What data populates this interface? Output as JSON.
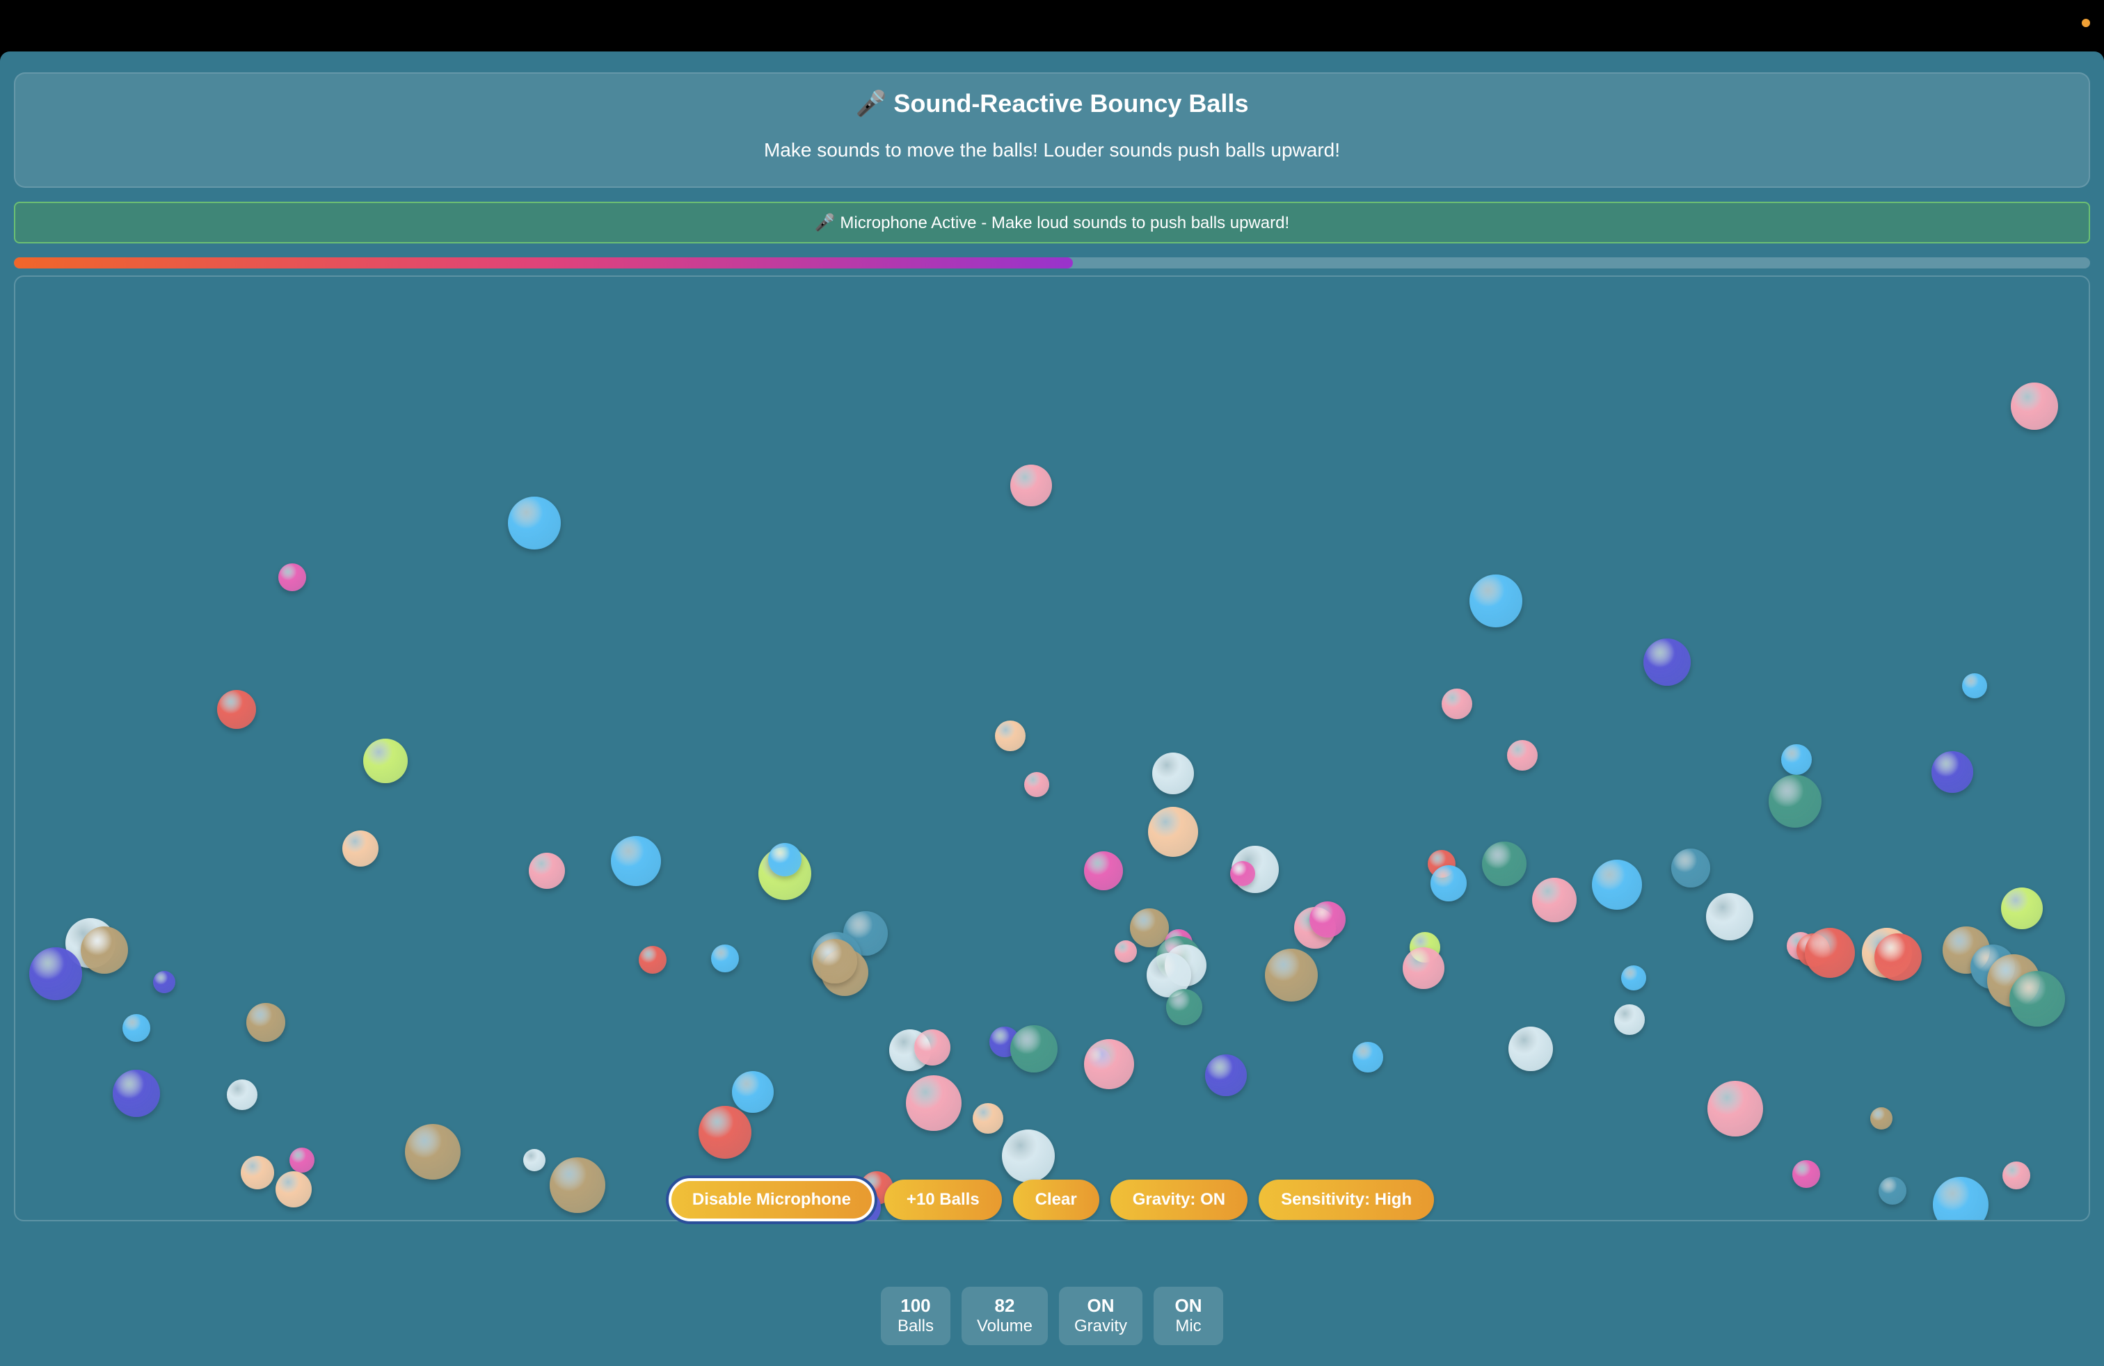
{
  "header": {
    "title": "🎤 Sound-Reactive Bouncy Balls",
    "subtitle": "Make sounds to move the balls! Louder sounds push balls upward!"
  },
  "status": {
    "text": "🎤 Microphone Active - Make loud sounds to push balls upward!"
  },
  "volume_meter": {
    "level": 0.51
  },
  "controls": {
    "mic_button": "Disable Microphone",
    "add_button": "+10 Balls",
    "clear_button": "Clear",
    "gravity_button": "Gravity: ON",
    "sensitivity_button": "Sensitivity: High"
  },
  "stats": [
    {
      "value": "100",
      "label": "Balls"
    },
    {
      "value": "82",
      "label": "Volume"
    },
    {
      "value": "ON",
      "label": "Gravity"
    },
    {
      "value": "ON",
      "label": "Mic"
    }
  ],
  "colors": {
    "background": "#35788e",
    "status_bg": "#3f8677",
    "button_gradient_start": "#f0c038",
    "button_gradient_end": "#e89a30",
    "meter_gradient": [
      "#f0662a",
      "#e0437a",
      "#9933cc"
    ],
    "ball_palette": [
      "#e8675f",
      "#5bc0f5",
      "#f4a8b8",
      "#f5cba7",
      "#5b5bd6",
      "#4a9a8a",
      "#d7e8ef",
      "#c9ee77",
      "#b8a278",
      "#e766b7",
      "#4f97b3"
    ]
  }
}
